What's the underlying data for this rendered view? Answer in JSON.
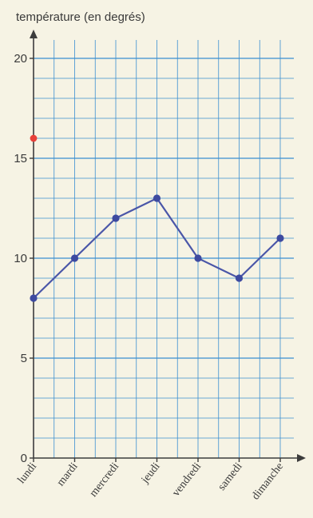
{
  "chart_data": {
    "type": "line",
    "title": "",
    "ylabel": "température (en degrés)",
    "xlabel": "",
    "categories": [
      "lundi",
      "mardi",
      "mercredi",
      "jeudi",
      "vendredi",
      "samedi",
      "dimanche"
    ],
    "series": [
      {
        "values": [
          8,
          10,
          12,
          13,
          10,
          9,
          11
        ]
      }
    ],
    "ylim": [
      0,
      20
    ],
    "yticks": [
      0,
      5,
      10,
      15,
      20
    ],
    "grid": true,
    "extra_marks": [
      {
        "x_category_index": 0,
        "y": 16,
        "color": "#e8413a"
      }
    ],
    "colors": {
      "grid": "#3a8fd1",
      "axis": "#3c3c3c",
      "line": "#4a56a8",
      "marker": "#3d4aa0",
      "highlight": "#e8413a"
    }
  }
}
